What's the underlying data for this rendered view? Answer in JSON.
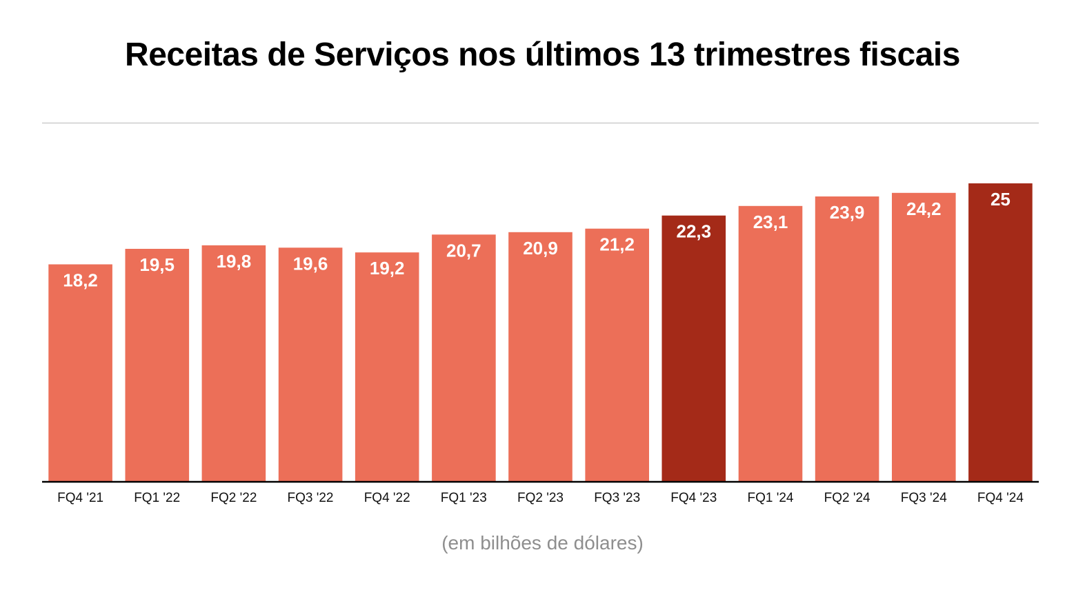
{
  "colors": {
    "bar": "#ec6f58",
    "bar_highlight": "#a42a18",
    "axis": "#000000",
    "top_rule": "#cccccc",
    "footnote": "#8e8e8e"
  },
  "chart_data": {
    "type": "bar",
    "title": "Receitas de Serviços nos últimos 13 trimestres fiscais",
    "footnote": "(em bilhões de dólares)",
    "categories": [
      "FQ4 '21",
      "FQ1 '22",
      "FQ2 '22",
      "FQ3 '22",
      "FQ4 '22",
      "FQ1 '23",
      "FQ2 '23",
      "FQ3 '23",
      "FQ4 '23",
      "FQ1 '24",
      "FQ2 '24",
      "FQ3 '24",
      "FQ4 '24"
    ],
    "values": [
      18.2,
      19.5,
      19.8,
      19.6,
      19.2,
      20.7,
      20.9,
      21.2,
      22.3,
      23.1,
      23.9,
      24.2,
      25
    ],
    "value_labels": [
      "18,2",
      "19,5",
      "19,8",
      "19,6",
      "19,2",
      "20,7",
      "20,9",
      "21,2",
      "22,3",
      "23,1",
      "23,9",
      "24,2",
      "25"
    ],
    "highlighted": [
      "FQ4 '23",
      "FQ4 '24"
    ],
    "xlabel": "",
    "ylabel": "",
    "ylim": [
      0,
      25
    ],
    "grid": false,
    "legend": "none"
  }
}
